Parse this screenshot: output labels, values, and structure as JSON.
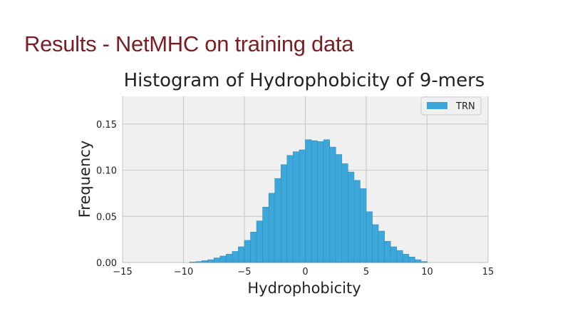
{
  "slide": {
    "title": "Results - NetMHC on training data"
  },
  "chart_data": {
    "type": "bar",
    "title": "Histogram of Hydrophobicity of 9-mers",
    "xlabel": "Hydrophobicity",
    "ylabel": "Frequency",
    "xlim": [
      -15,
      15
    ],
    "ylim": [
      0,
      0.18
    ],
    "xticks": [
      -15,
      -10,
      -5,
      0,
      5,
      10,
      15
    ],
    "xtick_labels": [
      "−15",
      "−10",
      "−5",
      "0",
      "5",
      "10",
      "15"
    ],
    "yticks": [
      0,
      0.05,
      0.1,
      0.15
    ],
    "ytick_labels": [
      "0.00",
      "0.05",
      "0.10",
      "0.15"
    ],
    "grid": true,
    "legend_position": "top-right",
    "series": [
      {
        "name": "TRN",
        "color": "#3ea7da",
        "bin_edges": [
          -9.5,
          -9.0,
          -8.5,
          -8.0,
          -7.5,
          -7.0,
          -6.5,
          -6.0,
          -5.5,
          -5.0,
          -4.5,
          -4.0,
          -3.5,
          -3.0,
          -2.5,
          -2.0,
          -1.5,
          -1.0,
          -0.5,
          0.0,
          0.5,
          1.0,
          1.5,
          2.0,
          2.5,
          3.0,
          3.5,
          4.0,
          4.5,
          5.0,
          5.5,
          6.0,
          6.5,
          7.0,
          7.5,
          8.0,
          8.5,
          9.0,
          9.5,
          10.0
        ],
        "values": [
          0.0005,
          0.001,
          0.002,
          0.003,
          0.005,
          0.007,
          0.009,
          0.012,
          0.017,
          0.024,
          0.033,
          0.045,
          0.06,
          0.075,
          0.091,
          0.106,
          0.116,
          0.12,
          0.122,
          0.133,
          0.132,
          0.131,
          0.133,
          0.125,
          0.117,
          0.107,
          0.098,
          0.089,
          0.08,
          0.055,
          0.041,
          0.034,
          0.023,
          0.017,
          0.013,
          0.009,
          0.006,
          0.003,
          0.001
        ]
      }
    ]
  },
  "colors": {
    "title": "#7b1e24",
    "plot_background": "#f0f0f0",
    "grid": "#cbcbcb",
    "bar": "#3ea7da"
  }
}
